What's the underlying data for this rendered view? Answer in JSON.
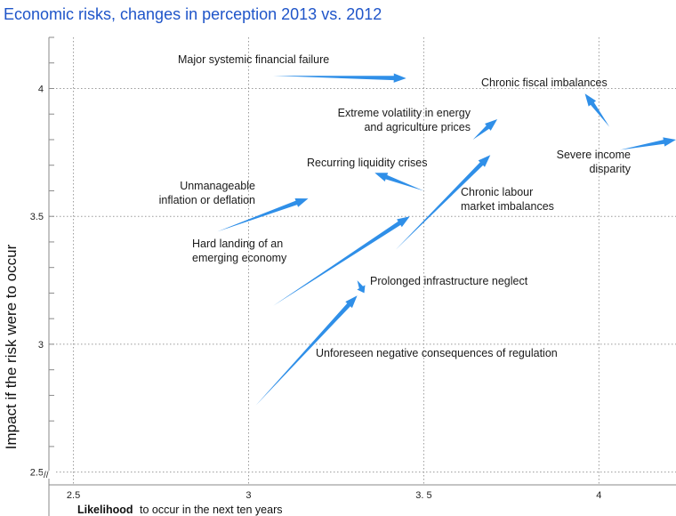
{
  "chart_data": {
    "type": "scatter",
    "title": "Economic risks, changes in perception 2013 vs. 2012",
    "xlabel": "Likelihood",
    "xlabel_suffix": "to occur in the next ten years",
    "ylabel": "Impact if the risk were to occur",
    "xlim": [
      2.43,
      4.22
    ],
    "ylim": [
      2.45,
      4.2
    ],
    "x_ticks": [
      2.5,
      3,
      3.5,
      4
    ],
    "x_tick_labels": [
      "2.5",
      "3",
      "3. 5",
      "4"
    ],
    "y_ticks": [
      2.5,
      3,
      3.5,
      4
    ],
    "y_tick_labels": [
      "2.5",
      "3",
      "3.5",
      "4"
    ],
    "axis_break_symbol": "//",
    "color": "#2f8fe8",
    "series": [
      {
        "name": "Major systemic financial failure",
        "lines": [
          "Major systemic financial failure"
        ],
        "x2012": 3.07,
        "y2012": 4.05,
        "x2013": 3.45,
        "y2013": 4.04
      },
      {
        "name": "Chronic fiscal imbalances",
        "lines": [
          "Chronic fiscal imbalances"
        ],
        "x2012": 4.03,
        "y2012": 3.85,
        "x2013": 3.96,
        "y2013": 3.98
      },
      {
        "name": "Extreme volatility in energy and agriculture prices",
        "lines": [
          "Extreme volatility in energy",
          "and agriculture prices"
        ],
        "x2012": 3.64,
        "y2012": 3.8,
        "x2013": 3.71,
        "y2013": 3.88
      },
      {
        "name": "Severe income disparity",
        "lines": [
          "Severe income",
          "disparity"
        ],
        "x2012": 4.06,
        "y2012": 3.76,
        "x2013": 4.22,
        "y2013": 3.8
      },
      {
        "name": "Recurring liquidity crises",
        "lines": [
          "Recurring liquidity crises"
        ],
        "x2012": 3.5,
        "y2012": 3.6,
        "x2013": 3.36,
        "y2013": 3.67
      },
      {
        "name": "Unmanageable inflation or deflation",
        "lines": [
          "Unmanageable",
          "inflation or deflation"
        ],
        "x2012": 2.91,
        "y2012": 3.44,
        "x2013": 3.17,
        "y2013": 3.57
      },
      {
        "name": "Chronic labour market imbalances",
        "lines": [
          "Chronic labour",
          "market imbalances"
        ],
        "x2012": 3.42,
        "y2012": 3.37,
        "x2013": 3.69,
        "y2013": 3.74
      },
      {
        "name": "Hard landing of an emerging economy",
        "lines": [
          "Hard landing of an",
          "emerging economy"
        ],
        "x2012": 3.07,
        "y2012": 3.15,
        "x2013": 3.46,
        "y2013": 3.5
      },
      {
        "name": "Prolonged infrastructure neglect",
        "lines": [
          "Prolonged infrastructure neglect"
        ],
        "x2012": 3.31,
        "y2012": 3.25,
        "x2013": 3.33,
        "y2013": 3.2
      },
      {
        "name": "Unforeseen negative consequences of regulation",
        "lines": [
          "Unforeseen negative consequences of regulation"
        ],
        "x2012": 3.02,
        "y2012": 2.76,
        "x2013": 3.31,
        "y2013": 3.19
      }
    ]
  }
}
